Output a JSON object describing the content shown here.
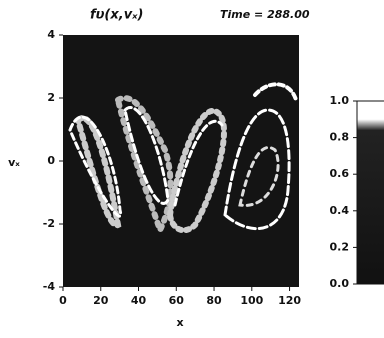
{
  "chart_data": [
    {
      "type": "image",
      "title": "fυ(x,vₓ)",
      "subtitle": "Time = 288.00",
      "x_label": "x",
      "y_label": "vₓ",
      "xlim": [
        0,
        125
      ],
      "xticks": [
        0,
        20,
        40,
        60,
        80,
        100,
        120
      ],
      "ylim": [
        -4,
        4
      ],
      "yticks": [
        4,
        2,
        0,
        -2,
        -4
      ]
    },
    {
      "type": "colorbar",
      "ylim": [
        0,
        1
      ],
      "yticks": [
        {
          "value": 1,
          "label": "1.0"
        },
        {
          "value": 0.8,
          "label": "0.8"
        },
        {
          "value": 0.6,
          "label": "0.6"
        },
        {
          "value": 0.4,
          "label": "0.4"
        },
        {
          "value": 0.2,
          "label": "0.2"
        },
        {
          "value": 0,
          "label": "0.0"
        }
      ]
    }
  ]
}
